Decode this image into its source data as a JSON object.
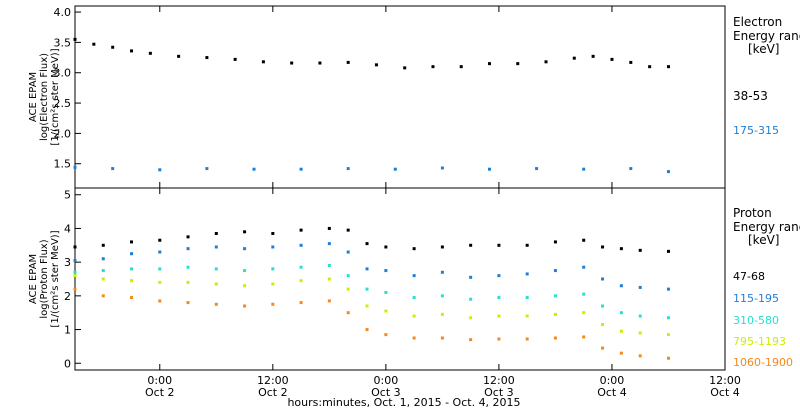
{
  "x_axis": {
    "title": "hours:minutes, Oct. 1, 2015 - Oct. 4, 2015",
    "ticks": [
      {
        "time": "0:00",
        "date": "Oct 2",
        "hours": 0
      },
      {
        "time": "12:00",
        "date": "Oct 2",
        "hours": 12
      },
      {
        "time": "0:00",
        "date": "Oct 3",
        "hours": 24
      },
      {
        "time": "12:00",
        "date": "Oct 3",
        "hours": 36
      },
      {
        "time": "0:00",
        "date": "Oct 4",
        "hours": 48
      },
      {
        "time": "12:00",
        "date": "Oct 4",
        "hours": 60
      }
    ],
    "range_hours": [
      -9,
      60
    ]
  },
  "chart_data": [
    {
      "type": "scatter",
      "title": "Electron",
      "ylabel_lines": [
        "ACE EPAM",
        "log(Electron Flux)",
        "[1/(cm²s ster MeV)]"
      ],
      "ylim": [
        1.1,
        4.1
      ],
      "yticks": [
        "1.5",
        "2.0",
        "2.5",
        "3.0",
        "3.5",
        "4.0"
      ],
      "legend": {
        "title_lines": [
          "Electron",
          "Energy range",
          "[keV]"
        ],
        "placement": "right"
      },
      "series": [
        {
          "name": "38-53",
          "color": "#000000",
          "x": [
            -9,
            -7,
            -5,
            -3,
            -1,
            2,
            5,
            8,
            11,
            14,
            17,
            20,
            23,
            26,
            29,
            32,
            35,
            38,
            41,
            44,
            46,
            48,
            50,
            52,
            54
          ],
          "y": [
            3.55,
            3.47,
            3.42,
            3.36,
            3.32,
            3.27,
            3.25,
            3.22,
            3.18,
            3.16,
            3.16,
            3.17,
            3.13,
            3.08,
            3.1,
            3.1,
            3.15,
            3.15,
            3.18,
            3.24,
            3.27,
            3.22,
            3.17,
            3.1,
            3.1
          ]
        },
        {
          "name": "175-315",
          "color": "#1f7fd6",
          "x": [
            -9,
            -5,
            0,
            5,
            10,
            15,
            20,
            25,
            30,
            35,
            40,
            45,
            50,
            54
          ],
          "y": [
            1.44,
            1.42,
            1.4,
            1.42,
            1.41,
            1.41,
            1.42,
            1.41,
            1.43,
            1.41,
            1.42,
            1.41,
            1.42,
            1.37
          ]
        }
      ]
    },
    {
      "type": "scatter",
      "title": "Proton",
      "ylabel_lines": [
        "ACE EPAM",
        "log(Proton Flux)",
        "[1/(cm²s ster MeV)]"
      ],
      "ylim": [
        -0.2,
        5.2
      ],
      "yticks": [
        "0",
        "1",
        "2",
        "3",
        "4",
        "5"
      ],
      "legend": {
        "title_lines": [
          "Proton",
          "Energy range",
          "[keV]"
        ],
        "placement": "right"
      },
      "series": [
        {
          "name": "47-68",
          "color": "#000000",
          "x": [
            -9,
            -6,
            -3,
            0,
            3,
            6,
            9,
            12,
            15,
            18,
            20,
            22,
            24,
            27,
            30,
            33,
            36,
            39,
            42,
            45,
            47,
            49,
            51,
            54
          ],
          "y": [
            3.45,
            3.5,
            3.6,
            3.65,
            3.75,
            3.85,
            3.9,
            3.85,
            3.95,
            4.0,
            3.95,
            3.55,
            3.45,
            3.4,
            3.45,
            3.5,
            3.5,
            3.5,
            3.6,
            3.65,
            3.45,
            3.4,
            3.35,
            3.32
          ]
        },
        {
          "name": "115-195",
          "color": "#1f7fd6",
          "x": [
            -9,
            -6,
            -3,
            0,
            3,
            6,
            9,
            12,
            15,
            18,
            20,
            22,
            24,
            27,
            30,
            33,
            36,
            39,
            42,
            45,
            47,
            49,
            51,
            54
          ],
          "y": [
            3.05,
            3.1,
            3.25,
            3.3,
            3.4,
            3.45,
            3.4,
            3.45,
            3.5,
            3.55,
            3.3,
            2.8,
            2.75,
            2.6,
            2.7,
            2.55,
            2.6,
            2.65,
            2.75,
            2.85,
            2.5,
            2.3,
            2.25,
            2.2
          ]
        },
        {
          "name": "310-580",
          "color": "#27e0cf",
          "x": [
            -9,
            -6,
            -3,
            0,
            3,
            6,
            9,
            12,
            15,
            18,
            20,
            22,
            24,
            27,
            30,
            33,
            36,
            39,
            42,
            45,
            47,
            49,
            51,
            54
          ],
          "y": [
            2.7,
            2.75,
            2.8,
            2.8,
            2.85,
            2.8,
            2.75,
            2.8,
            2.85,
            2.9,
            2.6,
            2.2,
            2.1,
            1.95,
            2.0,
            1.9,
            1.95,
            1.95,
            2.0,
            2.05,
            1.7,
            1.5,
            1.4,
            1.35
          ]
        },
        {
          "name": "795-1193",
          "color": "#c8f000",
          "x": [
            -9,
            -6,
            -3,
            0,
            3,
            6,
            9,
            12,
            15,
            18,
            20,
            22,
            24,
            27,
            30,
            33,
            36,
            39,
            42,
            45,
            47,
            49,
            51,
            54
          ],
          "y": [
            2.6,
            2.5,
            2.45,
            2.4,
            2.4,
            2.35,
            2.3,
            2.35,
            2.45,
            2.5,
            2.2,
            1.7,
            1.55,
            1.4,
            1.45,
            1.35,
            1.4,
            1.4,
            1.45,
            1.5,
            1.15,
            0.95,
            0.9,
            0.85
          ]
        },
        {
          "name": "1060-1900",
          "color": "#f5891b",
          "x": [
            -9,
            -6,
            -3,
            0,
            3,
            6,
            9,
            12,
            15,
            18,
            20,
            22,
            24,
            27,
            30,
            33,
            36,
            39,
            42,
            45,
            47,
            49,
            51,
            54
          ],
          "y": [
            2.2,
            2.0,
            1.95,
            1.85,
            1.8,
            1.75,
            1.7,
            1.75,
            1.8,
            1.85,
            1.5,
            1.0,
            0.85,
            0.75,
            0.75,
            0.7,
            0.72,
            0.72,
            0.75,
            0.78,
            0.45,
            0.3,
            0.22,
            0.15
          ]
        }
      ]
    }
  ]
}
